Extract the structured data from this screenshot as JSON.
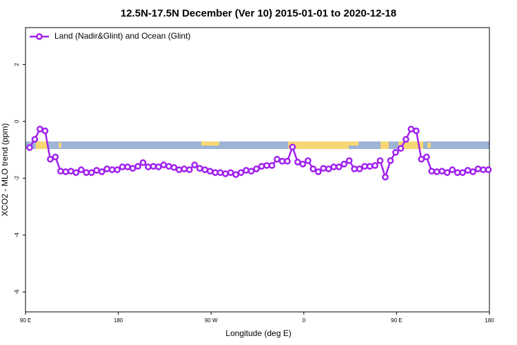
{
  "chart_data": {
    "type": "line",
    "title": "12.5N-17.5N December (Ver 10)   2015-01-01 to 2020-12-18",
    "x_label": "Longitude (deg E)",
    "y_label": "XCO2 - MLO trend (ppm)",
    "xlim": [
      90,
      540
    ],
    "ylim": [
      -6.7,
      3.3
    ],
    "xticks": [
      {
        "value": 90,
        "label": "90 E"
      },
      180,
      {
        "value": 270,
        "label": "90 W"
      },
      {
        "value": 360,
        "label": "0"
      },
      {
        "value": 450,
        "label": "90 E"
      },
      {
        "value": 540,
        "label": "180"
      }
    ],
    "yticks": [
      -6,
      -4,
      -2,
      0,
      2
    ],
    "legend": "top-left",
    "x": [
      94,
      99,
      104,
      109,
      114,
      119,
      124,
      129,
      134,
      139,
      144,
      149,
      154,
      159,
      164,
      169,
      174,
      179,
      184,
      189,
      194,
      199,
      204,
      209,
      214,
      219,
      224,
      229,
      234,
      239,
      244,
      249,
      254,
      259,
      264,
      269,
      274,
      279,
      284,
      289,
      294,
      299,
      304,
      309,
      314,
      319,
      324,
      329,
      334,
      339,
      344,
      349,
      354,
      359,
      364,
      369,
      374,
      379,
      384,
      389,
      394,
      399,
      404,
      409,
      414,
      419,
      424,
      429,
      434,
      439,
      444,
      449,
      454,
      459,
      464,
      469,
      474,
      479,
      484,
      489,
      494,
      499,
      504,
      509,
      514,
      519,
      524,
      529,
      534,
      539
    ],
    "series": [
      {
        "name": "Land (Nadir&Glint) and Ocean (Glint)",
        "color": "#a020f0",
        "values": [
          -0.92,
          -0.63,
          -0.27,
          -0.33,
          -1.33,
          -1.25,
          -1.75,
          -1.77,
          -1.75,
          -1.8,
          -1.7,
          -1.8,
          -1.8,
          -1.72,
          -1.77,
          -1.67,
          -1.7,
          -1.7,
          -1.6,
          -1.6,
          -1.65,
          -1.58,
          -1.45,
          -1.6,
          -1.58,
          -1.6,
          -1.53,
          -1.58,
          -1.62,
          -1.7,
          -1.67,
          -1.7,
          -1.53,
          -1.65,
          -1.7,
          -1.75,
          -1.8,
          -1.8,
          -1.84,
          -1.8,
          -1.87,
          -1.8,
          -1.72,
          -1.75,
          -1.67,
          -1.58,
          -1.55,
          -1.55,
          -1.33,
          -1.4,
          -1.4,
          -0.9,
          -1.43,
          -1.5,
          -1.38,
          -1.67,
          -1.77,
          -1.65,
          -1.67,
          -1.6,
          -1.6,
          -1.5,
          -1.38,
          -1.67,
          -1.67,
          -1.58,
          -1.58,
          -1.55,
          -1.38,
          -1.96,
          -1.38,
          -1.09,
          -0.95,
          -0.63,
          -0.27,
          -0.33,
          -1.33,
          -1.25,
          -1.75,
          -1.77,
          -1.75,
          -1.8,
          -1.7,
          -1.8,
          -1.8,
          -1.72,
          -1.77,
          -1.67,
          -1.7,
          -1.7
        ]
      }
    ]
  }
}
